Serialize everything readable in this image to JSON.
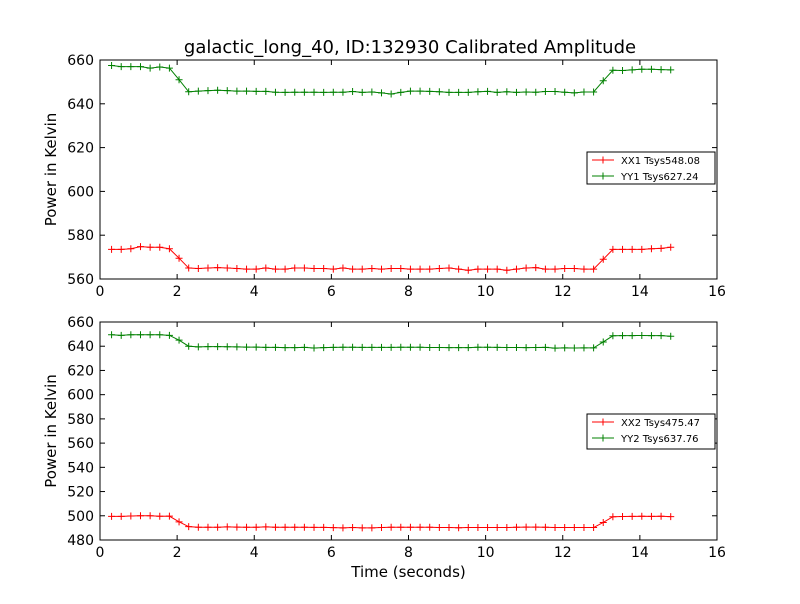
{
  "title": "galactic_long_40, ID:132930 Calibrated Amplitude",
  "chart_data": [
    {
      "type": "line",
      "ylabel": "Power in Kelvin",
      "xlabel": "",
      "xlim": [
        0,
        16
      ],
      "ylim": [
        560,
        660
      ],
      "xticks": [
        "0",
        "2",
        "4",
        "6",
        "8",
        "10",
        "12",
        "14",
        "16"
      ],
      "yticks": [
        "560",
        "580",
        "600",
        "620",
        "640",
        "660"
      ],
      "grid": false,
      "legend_position": "right",
      "x": [
        0.3,
        0.55,
        0.8,
        1.05,
        1.3,
        1.55,
        1.8,
        2.05,
        2.3,
        2.55,
        2.8,
        3.05,
        3.3,
        3.55,
        3.8,
        4.05,
        4.3,
        4.55,
        4.8,
        5.05,
        5.3,
        5.55,
        5.8,
        6.05,
        6.3,
        6.55,
        6.8,
        7.05,
        7.3,
        7.55,
        7.8,
        8.05,
        8.3,
        8.55,
        8.8,
        9.05,
        9.3,
        9.55,
        9.8,
        10.05,
        10.3,
        10.55,
        10.8,
        11.05,
        11.3,
        11.55,
        11.8,
        12.05,
        12.3,
        12.55,
        12.8,
        13.05,
        13.3,
        13.55,
        13.8,
        14.05,
        14.3,
        14.55,
        14.8
      ],
      "series": [
        {
          "name": "XX1 Tsys548.08",
          "color": "#ff0000",
          "values": [
            573.5,
            573.5,
            573.8,
            574.8,
            574.5,
            574.5,
            573.8,
            569.5,
            565,
            564.8,
            565,
            565.2,
            565,
            564.8,
            564.5,
            564.5,
            565,
            564.5,
            564.5,
            565,
            565,
            564.8,
            564.8,
            564.5,
            565,
            564.5,
            564.5,
            564.8,
            564.5,
            564.8,
            564.8,
            564.5,
            564.5,
            564.5,
            564.8,
            565,
            564.5,
            564,
            564.5,
            564.5,
            564.5,
            564,
            564.5,
            565,
            565.2,
            564.5,
            564.5,
            564.8,
            564.8,
            564.5,
            564.5,
            569,
            573.5,
            573.5,
            573.5,
            573.5,
            573.8,
            574,
            574.5
          ]
        },
        {
          "name": "YY1 Tsys627.24",
          "color": "#008000",
          "values": [
            657.5,
            657,
            657,
            657,
            656.3,
            656.8,
            656.3,
            651,
            645.5,
            645.8,
            646,
            646.2,
            646,
            645.8,
            645.8,
            645.7,
            645.7,
            645.3,
            645.2,
            645.3,
            645.3,
            645.3,
            645.2,
            645.3,
            645.3,
            645.6,
            645.2,
            645.4,
            645,
            644.5,
            645.2,
            645.8,
            645.8,
            645.7,
            645.5,
            645.2,
            645.2,
            645.2,
            645.5,
            645.7,
            645.2,
            645.5,
            645.2,
            645.4,
            645.3,
            645.6,
            645.6,
            645.3,
            645,
            645.4,
            645.4,
            650.5,
            655.3,
            655.2,
            655.5,
            655.8,
            655.8,
            655.6,
            655.5
          ]
        }
      ]
    },
    {
      "type": "line",
      "ylabel": "Power in Kelvin",
      "xlabel": "Time (seconds)",
      "xlim": [
        0,
        16
      ],
      "ylim": [
        480,
        660
      ],
      "xticks": [
        "0",
        "2",
        "4",
        "6",
        "8",
        "10",
        "12",
        "14",
        "16"
      ],
      "yticks": [
        "480",
        "500",
        "520",
        "540",
        "560",
        "580",
        "600",
        "620",
        "640",
        "660"
      ],
      "grid": false,
      "legend_position": "right",
      "x": [
        0.3,
        0.55,
        0.8,
        1.05,
        1.3,
        1.55,
        1.8,
        2.05,
        2.3,
        2.55,
        2.8,
        3.05,
        3.3,
        3.55,
        3.8,
        4.05,
        4.3,
        4.55,
        4.8,
        5.05,
        5.3,
        5.55,
        5.8,
        6.05,
        6.3,
        6.55,
        6.8,
        7.05,
        7.3,
        7.55,
        7.8,
        8.05,
        8.3,
        8.55,
        8.8,
        9.05,
        9.3,
        9.55,
        9.8,
        10.05,
        10.3,
        10.55,
        10.8,
        11.05,
        11.3,
        11.55,
        11.8,
        12.05,
        12.3,
        12.55,
        12.8,
        13.05,
        13.3,
        13.55,
        13.8,
        14.05,
        14.3,
        14.55,
        14.8
      ],
      "series": [
        {
          "name": "XX2 Tsys475.47",
          "color": "#ff0000",
          "values": [
            499.5,
            499.5,
            499.8,
            500,
            500,
            499.6,
            499.7,
            495,
            491,
            490.5,
            490.5,
            490.5,
            490.8,
            490.6,
            490.5,
            490.5,
            490.8,
            490.5,
            490.5,
            490.5,
            490.5,
            490.4,
            490.4,
            490.2,
            490,
            490.3,
            490,
            490,
            490.3,
            490.5,
            490.5,
            490.5,
            490.5,
            490.5,
            490.3,
            490.3,
            490.1,
            490.3,
            490.3,
            490.3,
            490.3,
            490.3,
            490.5,
            490.6,
            490.6,
            490.5,
            490.3,
            490.3,
            490.3,
            490.3,
            490.3,
            494.5,
            499.2,
            499.4,
            499.5,
            499.6,
            499.5,
            499.6,
            499.3
          ]
        },
        {
          "name": "YY2 Tsys637.76",
          "color": "#008000",
          "values": [
            649.5,
            649,
            649.5,
            649.5,
            649.5,
            649.5,
            649,
            645,
            640,
            639.5,
            639.7,
            639.7,
            639.6,
            639.5,
            639.3,
            639.3,
            639,
            639,
            638.8,
            638.8,
            639,
            638.5,
            638.8,
            639,
            639.2,
            639.1,
            639,
            639,
            639,
            639,
            639.1,
            639.1,
            639.1,
            638.9,
            638.9,
            638.8,
            638.8,
            638.8,
            639.2,
            639.1,
            639,
            638.9,
            638.9,
            638.8,
            638.9,
            639,
            638.4,
            638.6,
            638.5,
            638.6,
            638.6,
            643.5,
            648.6,
            648.7,
            648.8,
            648.9,
            648.8,
            648.7,
            648.2
          ]
        }
      ]
    }
  ]
}
